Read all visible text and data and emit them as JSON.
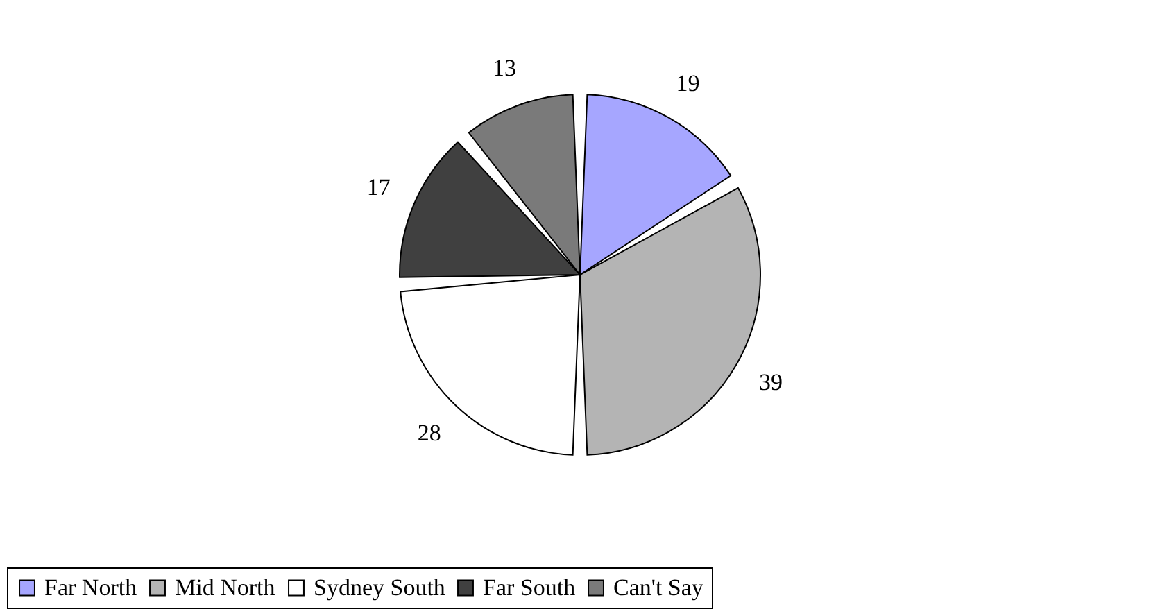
{
  "chart_data": {
    "type": "pie",
    "categories": [
      "Far North",
      "Mid North",
      "Sydney South",
      "Far South",
      "Can't Say"
    ],
    "values": [
      19,
      39,
      28,
      17,
      13
    ],
    "colors": [
      "#a6a6ff",
      "#b4b4b4",
      "#ffffff",
      "#404040",
      "#7a7a7a"
    ],
    "data_labels": true,
    "legend": "bottom"
  }
}
